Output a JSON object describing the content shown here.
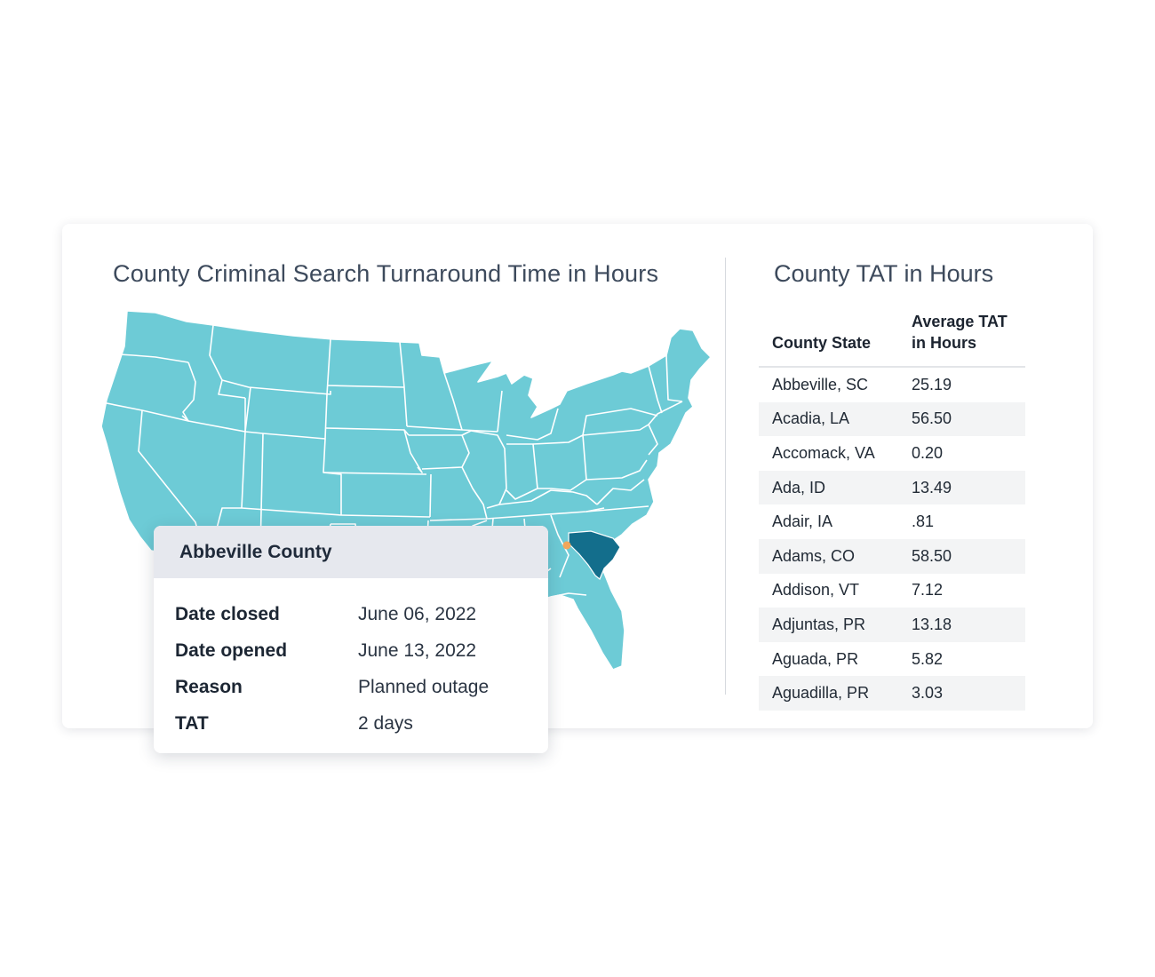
{
  "map_panel": {
    "title": "County Criminal Search Turnaround Time in Hours",
    "map": {
      "base_color": "#6dcbd6",
      "highlight_state": "SC",
      "highlight_color": "#136e8c",
      "marker_color": "#f2a65a",
      "border_color": "#ffffff"
    }
  },
  "table_panel": {
    "title": "County TAT in Hours",
    "headers": {
      "county": "County State",
      "tat_line1": "Average TAT",
      "tat_line2": "in Hours"
    },
    "rows": [
      {
        "county": "Abbeville, SC",
        "tat": "25.19"
      },
      {
        "county": "Acadia, LA",
        "tat": "56.50"
      },
      {
        "county": "Accomack, VA",
        "tat": "0.20"
      },
      {
        "county": "Ada, ID",
        "tat": "13.49"
      },
      {
        "county": "Adair, IA",
        "tat": ".81"
      },
      {
        "county": "Adams, CO",
        "tat": "58.50"
      },
      {
        "county": "Addison, VT",
        "tat": "7.12"
      },
      {
        "county": "Adjuntas, PR",
        "tat": "13.18"
      },
      {
        "county": "Aguada, PR",
        "tat": "5.82"
      },
      {
        "county": "Aguadilla, PR",
        "tat": "3.03"
      }
    ]
  },
  "tooltip": {
    "title": "Abbeville County",
    "rows": [
      {
        "label": "Date closed",
        "value": "June 06, 2022"
      },
      {
        "label": "Date opened",
        "value": "June 13, 2022"
      },
      {
        "label": "Reason",
        "value": "Planned outage"
      },
      {
        "label": "TAT",
        "value": "2 days"
      }
    ]
  }
}
